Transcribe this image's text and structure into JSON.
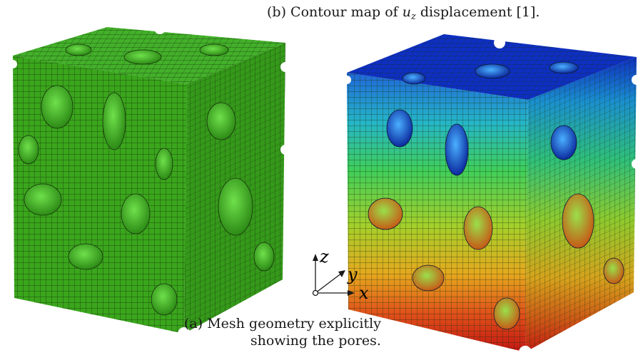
{
  "caption_b": {
    "prefix": "(b) Contour map of ",
    "u_symbol": "u",
    "u_subscript": "z",
    "suffix": " displacement [1]."
  },
  "caption_a": {
    "line1": "(a) Mesh geometry explicitly",
    "line2": "showing the pores."
  },
  "axes": {
    "z": "z",
    "y": "y",
    "x": "x"
  },
  "colors": {
    "mesh_green": "#3aa61c",
    "mesh_green_dark": "#2a8114",
    "mesh_green_light": "#56c237",
    "contour_blue_top": "#0e2fc2",
    "contour_red_bottom": "#c81a12",
    "grid_line": "#1d3a10"
  },
  "icons": {
    "axis_triad": "xyz-axis-triad-icon"
  }
}
